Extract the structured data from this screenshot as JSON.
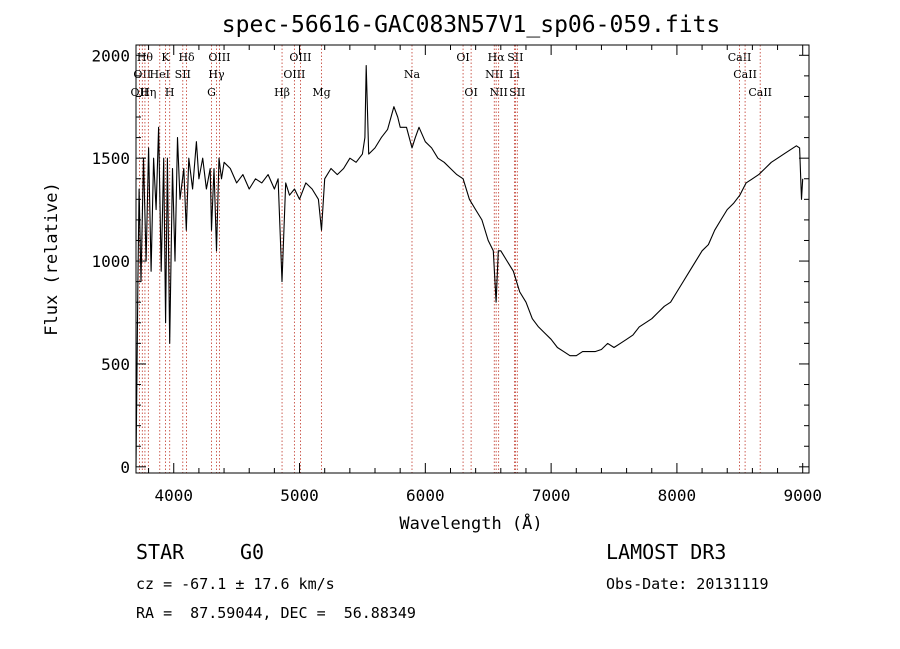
{
  "chart_data": {
    "type": "line",
    "title": "spec-56616-GAC083N57V1_sp06-059.fits",
    "xlabel": "Wavelength (Å)",
    "ylabel": "Flux (relative)",
    "xlim": [
      3700,
      9050
    ],
    "ylim": [
      -30,
      2050
    ],
    "xticks": [
      {
        "value": 4000,
        "label": "4000"
      },
      {
        "value": 5000,
        "label": "5000"
      },
      {
        "value": 6000,
        "label": "6000"
      },
      {
        "value": 7000,
        "label": "7000"
      },
      {
        "value": 8000,
        "label": "8000"
      },
      {
        "value": 9000,
        "label": "9000"
      }
    ],
    "yticks": [
      {
        "value": 0,
        "label": "0"
      },
      {
        "value": 500,
        "label": "500"
      },
      {
        "value": 1000,
        "label": "1000"
      },
      {
        "value": 1500,
        "label": "1500"
      },
      {
        "value": 2000,
        "label": "2000"
      }
    ],
    "spectral_lines": [
      {
        "wavelength": 3727,
        "label": "OII",
        "row": 3
      },
      {
        "wavelength": 3750,
        "label": "OII",
        "row": 2
      },
      {
        "wavelength": 3771,
        "label": "Hθ",
        "row": 1
      },
      {
        "wavelength": 3798,
        "label": "Hη",
        "row": 3
      },
      {
        "wavelength": 3889,
        "label": "HeI",
        "row": 2
      },
      {
        "wavelength": 3934,
        "label": "K",
        "row": 1
      },
      {
        "wavelength": 3968,
        "label": "H",
        "row": 3
      },
      {
        "wavelength": 4072,
        "label": "SII",
        "row": 2
      },
      {
        "wavelength": 4102,
        "label": "Hδ",
        "row": 1
      },
      {
        "wavelength": 4300,
        "label": "G",
        "row": 3
      },
      {
        "wavelength": 4340,
        "label": "Hγ",
        "row": 2
      },
      {
        "wavelength": 4363,
        "label": "OIII",
        "row": 1
      },
      {
        "wavelength": 4861,
        "label": "Hβ",
        "row": 3
      },
      {
        "wavelength": 4959,
        "label": "OIII",
        "row": 2
      },
      {
        "wavelength": 5007,
        "label": "OIII",
        "row": 1
      },
      {
        "wavelength": 5175,
        "label": "Mg",
        "row": 3
      },
      {
        "wavelength": 5894,
        "label": "Na",
        "row": 2
      },
      {
        "wavelength": 6300,
        "label": "OI",
        "row": 1
      },
      {
        "wavelength": 6364,
        "label": "OI",
        "row": 3
      },
      {
        "wavelength": 6548,
        "label": "NII",
        "row": 2
      },
      {
        "wavelength": 6563,
        "label": "Hα",
        "row": 1
      },
      {
        "wavelength": 6583,
        "label": "NII",
        "row": 3
      },
      {
        "wavelength": 6708,
        "label": "Li",
        "row": 2
      },
      {
        "wavelength": 6716,
        "label": "SII",
        "row": 1
      },
      {
        "wavelength": 6731,
        "label": "SII",
        "row": 3
      },
      {
        "wavelength": 8498,
        "label": "CaII",
        "row": 1
      },
      {
        "wavelength": 8542,
        "label": "CaII",
        "row": 2
      },
      {
        "wavelength": 8662,
        "label": "CaII",
        "row": 3
      }
    ],
    "series": [
      {
        "name": "flux",
        "x": [
          3700,
          3715,
          3725,
          3740,
          3760,
          3780,
          3800,
          3820,
          3840,
          3860,
          3880,
          3900,
          3920,
          3935,
          3950,
          3968,
          3990,
          4010,
          4030,
          4050,
          4080,
          4100,
          4120,
          4150,
          4180,
          4200,
          4230,
          4260,
          4290,
          4300,
          4320,
          4340,
          4360,
          4380,
          4400,
          4450,
          4500,
          4550,
          4600,
          4650,
          4700,
          4750,
          4800,
          4830,
          4861,
          4890,
          4920,
          4960,
          5000,
          5050,
          5100,
          5150,
          5175,
          5200,
          5250,
          5300,
          5350,
          5400,
          5450,
          5500,
          5520,
          5530,
          5550,
          5600,
          5650,
          5700,
          5750,
          5780,
          5800,
          5850,
          5894,
          5920,
          5950,
          6000,
          6050,
          6100,
          6150,
          6200,
          6250,
          6300,
          6350,
          6400,
          6450,
          6500,
          6540,
          6563,
          6580,
          6600,
          6650,
          6700,
          6750,
          6800,
          6850,
          6900,
          6950,
          7000,
          7050,
          7100,
          7150,
          7200,
          7250,
          7300,
          7350,
          7400,
          7450,
          7500,
          7550,
          7600,
          7650,
          7700,
          7750,
          7800,
          7850,
          7900,
          7950,
          8000,
          8050,
          8100,
          8150,
          8200,
          8250,
          8300,
          8350,
          8400,
          8450,
          8500,
          8550,
          8600,
          8650,
          8700,
          8750,
          8800,
          8850,
          8900,
          8950,
          8975,
          8990,
          9000
        ],
        "y": [
          0,
          900,
          1350,
          900,
          1500,
          1000,
          1550,
          950,
          1500,
          1250,
          1650,
          950,
          1500,
          700,
          1500,
          600,
          1450,
          1000,
          1600,
          1300,
          1450,
          1150,
          1500,
          1350,
          1580,
          1400,
          1500,
          1350,
          1450,
          1150,
          1450,
          1050,
          1500,
          1400,
          1480,
          1450,
          1380,
          1420,
          1350,
          1400,
          1380,
          1420,
          1350,
          1400,
          900,
          1380,
          1320,
          1350,
          1300,
          1380,
          1350,
          1300,
          1150,
          1400,
          1450,
          1420,
          1450,
          1500,
          1480,
          1520,
          1600,
          1950,
          1520,
          1550,
          1600,
          1640,
          1750,
          1700,
          1650,
          1650,
          1550,
          1600,
          1650,
          1580,
          1550,
          1500,
          1480,
          1450,
          1420,
          1400,
          1300,
          1250,
          1200,
          1100,
          1050,
          800,
          1050,
          1050,
          1000,
          950,
          850,
          800,
          720,
          680,
          650,
          620,
          580,
          560,
          540,
          540,
          560,
          560,
          560,
          570,
          600,
          580,
          600,
          620,
          640,
          680,
          700,
          720,
          750,
          780,
          800,
          850,
          900,
          950,
          1000,
          1050,
          1080,
          1150,
          1200,
          1250,
          1280,
          1320,
          1380,
          1400,
          1420,
          1450,
          1480,
          1500,
          1520,
          1540,
          1560,
          1550,
          1300,
          1400
        ]
      }
    ]
  },
  "info": {
    "object_class": "STAR",
    "subclass": "G0",
    "survey": "LAMOST DR3",
    "cz": "cz = -67.1 ± 17.6 km/s",
    "obs_date": "Obs-Date: 20131119",
    "coords": "RA =  87.59044, DEC =  56.88349"
  }
}
